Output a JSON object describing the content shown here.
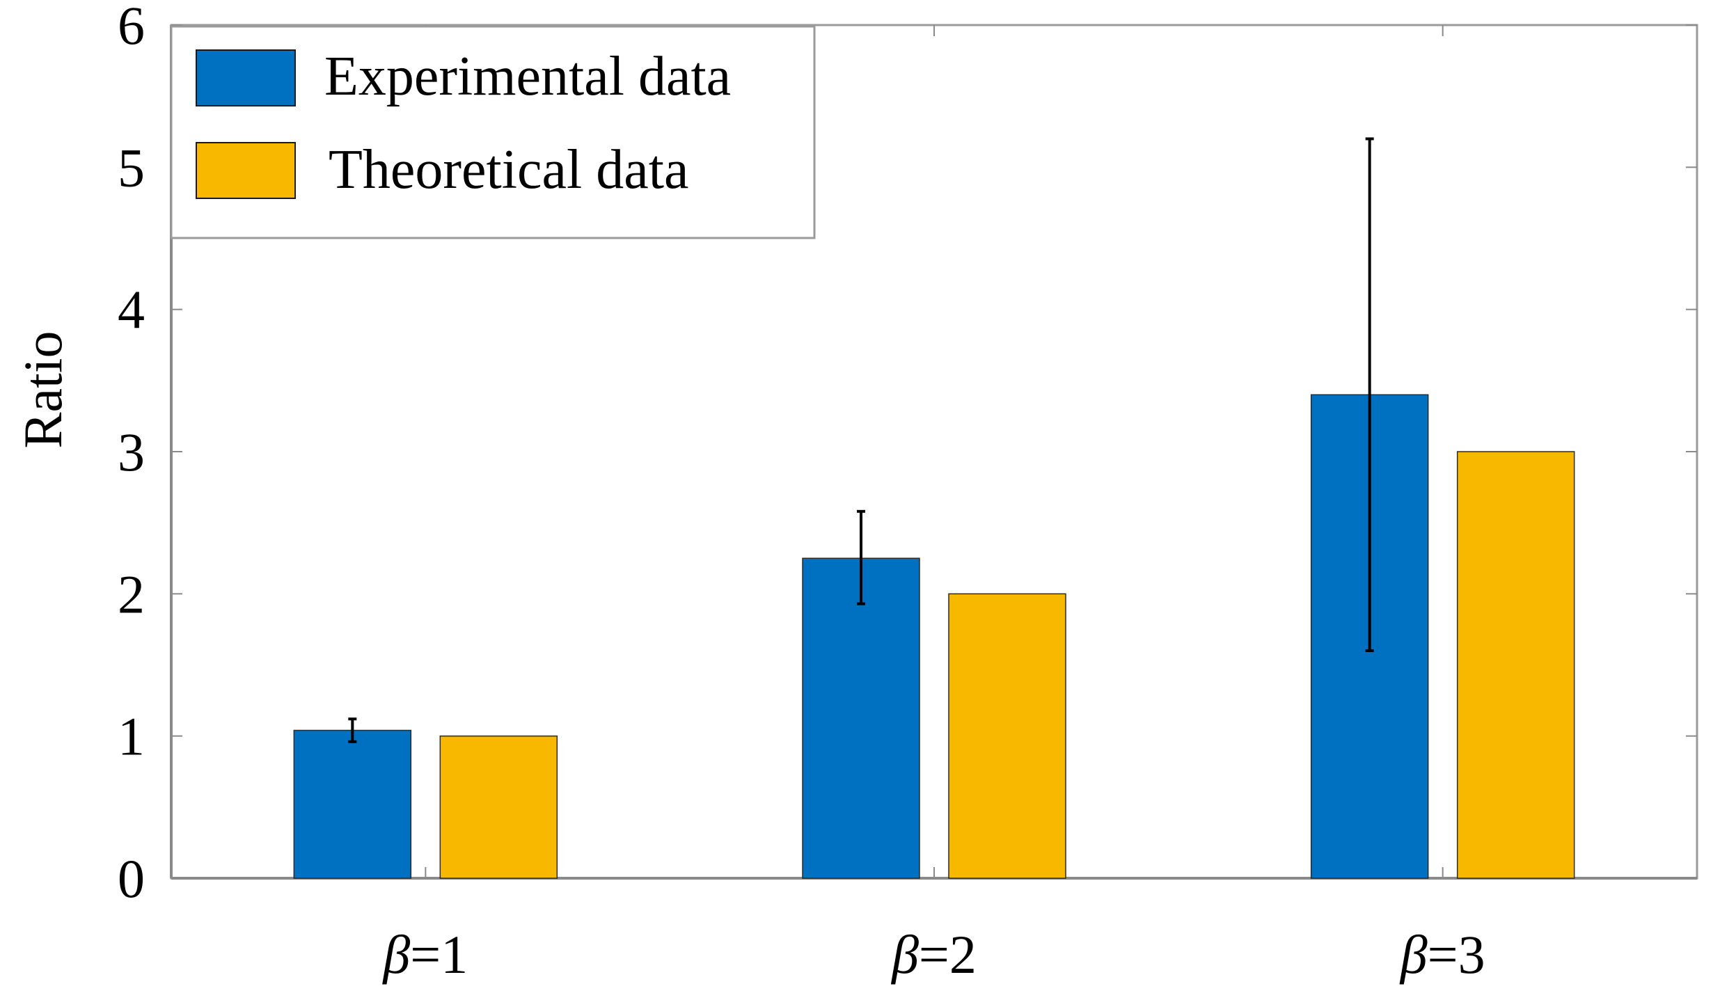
{
  "chart_data": {
    "type": "bar",
    "title": "",
    "xlabel": "",
    "ylabel": "Ratio",
    "ylim": [
      0,
      6
    ],
    "yticks": [
      "0",
      "1",
      "2",
      "3",
      "4",
      "5",
      "6"
    ],
    "categories": [
      {
        "symbol": "β",
        "rest": "=1"
      },
      {
        "symbol": "β",
        "rest": "=2"
      },
      {
        "symbol": "β",
        "rest": "=3"
      }
    ],
    "series": [
      {
        "name": "Experimental data",
        "color": "#0070C0",
        "values": [
          1.04,
          2.25,
          3.4
        ],
        "error_low": [
          0.96,
          1.93,
          1.6
        ],
        "error_high": [
          1.12,
          2.58,
          5.2
        ]
      },
      {
        "name": "Theoretical data",
        "color": "#F8B800",
        "values": [
          1.0,
          2.0,
          3.0
        ]
      }
    ],
    "legend_position": "top-left",
    "grid": false
  }
}
